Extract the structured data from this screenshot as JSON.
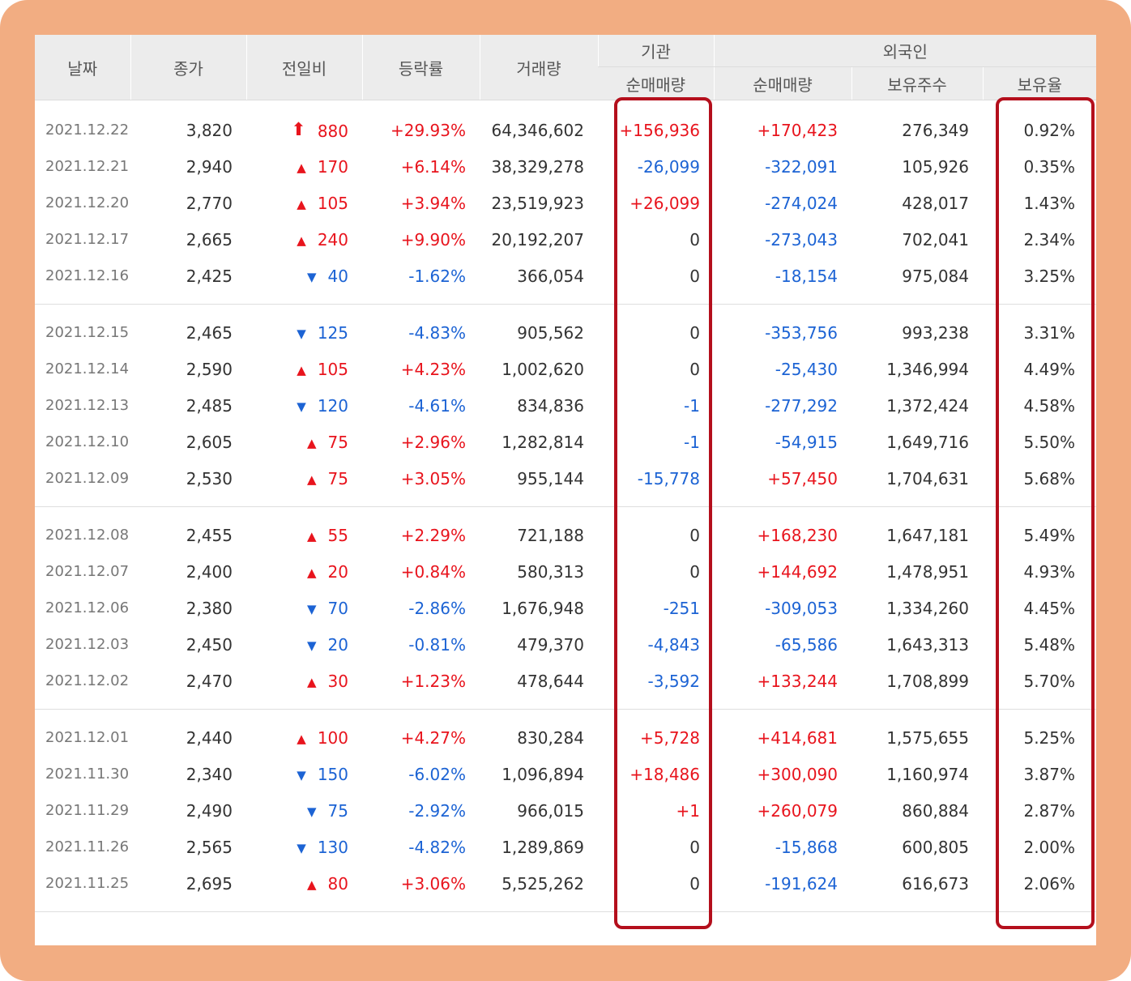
{
  "headers": {
    "date": "날짜",
    "close": "종가",
    "diff": "전일비",
    "rate": "등락률",
    "volume": "거래량",
    "institution": "기관",
    "foreign": "외국인",
    "inst_net": "순매매량",
    "frg_net": "순매매량",
    "holding": "보유주수",
    "ratio": "보유율"
  },
  "groups": [
    [
      {
        "date": "2021.12.22",
        "close": "3,820",
        "dir": "limit-up",
        "diff": "880",
        "rate": "+29.93%",
        "volume": "64,346,602",
        "inst": "+156,936",
        "inst_dir": "up",
        "frg": "+170,423",
        "frg_dir": "up",
        "holding": "276,349",
        "ratio": "0.92%"
      },
      {
        "date": "2021.12.21",
        "close": "2,940",
        "dir": "up",
        "diff": "170",
        "rate": "+6.14%",
        "volume": "38,329,278",
        "inst": "-26,099",
        "inst_dir": "down",
        "frg": "-322,091",
        "frg_dir": "down",
        "holding": "105,926",
        "ratio": "0.35%"
      },
      {
        "date": "2021.12.20",
        "close": "2,770",
        "dir": "up",
        "diff": "105",
        "rate": "+3.94%",
        "volume": "23,519,923",
        "inst": "+26,099",
        "inst_dir": "up",
        "frg": "-274,024",
        "frg_dir": "down",
        "holding": "428,017",
        "ratio": "1.43%"
      },
      {
        "date": "2021.12.17",
        "close": "2,665",
        "dir": "up",
        "diff": "240",
        "rate": "+9.90%",
        "volume": "20,192,207",
        "inst": "0",
        "inst_dir": "neutral",
        "frg": "-273,043",
        "frg_dir": "down",
        "holding": "702,041",
        "ratio": "2.34%"
      },
      {
        "date": "2021.12.16",
        "close": "2,425",
        "dir": "down",
        "diff": "40",
        "rate": "-1.62%",
        "volume": "366,054",
        "inst": "0",
        "inst_dir": "neutral",
        "frg": "-18,154",
        "frg_dir": "down",
        "holding": "975,084",
        "ratio": "3.25%"
      }
    ],
    [
      {
        "date": "2021.12.15",
        "close": "2,465",
        "dir": "down",
        "diff": "125",
        "rate": "-4.83%",
        "volume": "905,562",
        "inst": "0",
        "inst_dir": "neutral",
        "frg": "-353,756",
        "frg_dir": "down",
        "holding": "993,238",
        "ratio": "3.31%"
      },
      {
        "date": "2021.12.14",
        "close": "2,590",
        "dir": "up",
        "diff": "105",
        "rate": "+4.23%",
        "volume": "1,002,620",
        "inst": "0",
        "inst_dir": "neutral",
        "frg": "-25,430",
        "frg_dir": "down",
        "holding": "1,346,994",
        "ratio": "4.49%"
      },
      {
        "date": "2021.12.13",
        "close": "2,485",
        "dir": "down",
        "diff": "120",
        "rate": "-4.61%",
        "volume": "834,836",
        "inst": "-1",
        "inst_dir": "down",
        "frg": "-277,292",
        "frg_dir": "down",
        "holding": "1,372,424",
        "ratio": "4.58%"
      },
      {
        "date": "2021.12.10",
        "close": "2,605",
        "dir": "up",
        "diff": "75",
        "rate": "+2.96%",
        "volume": "1,282,814",
        "inst": "-1",
        "inst_dir": "down",
        "frg": "-54,915",
        "frg_dir": "down",
        "holding": "1,649,716",
        "ratio": "5.50%"
      },
      {
        "date": "2021.12.09",
        "close": "2,530",
        "dir": "up",
        "diff": "75",
        "rate": "+3.05%",
        "volume": "955,144",
        "inst": "-15,778",
        "inst_dir": "down",
        "frg": "+57,450",
        "frg_dir": "up",
        "holding": "1,704,631",
        "ratio": "5.68%"
      }
    ],
    [
      {
        "date": "2021.12.08",
        "close": "2,455",
        "dir": "up",
        "diff": "55",
        "rate": "+2.29%",
        "volume": "721,188",
        "inst": "0",
        "inst_dir": "neutral",
        "frg": "+168,230",
        "frg_dir": "up",
        "holding": "1,647,181",
        "ratio": "5.49%"
      },
      {
        "date": "2021.12.07",
        "close": "2,400",
        "dir": "up",
        "diff": "20",
        "rate": "+0.84%",
        "volume": "580,313",
        "inst": "0",
        "inst_dir": "neutral",
        "frg": "+144,692",
        "frg_dir": "up",
        "holding": "1,478,951",
        "ratio": "4.93%"
      },
      {
        "date": "2021.12.06",
        "close": "2,380",
        "dir": "down",
        "diff": "70",
        "rate": "-2.86%",
        "volume": "1,676,948",
        "inst": "-251",
        "inst_dir": "down",
        "frg": "-309,053",
        "frg_dir": "down",
        "holding": "1,334,260",
        "ratio": "4.45%"
      },
      {
        "date": "2021.12.03",
        "close": "2,450",
        "dir": "down",
        "diff": "20",
        "rate": "-0.81%",
        "volume": "479,370",
        "inst": "-4,843",
        "inst_dir": "down",
        "frg": "-65,586",
        "frg_dir": "down",
        "holding": "1,643,313",
        "ratio": "5.48%"
      },
      {
        "date": "2021.12.02",
        "close": "2,470",
        "dir": "up",
        "diff": "30",
        "rate": "+1.23%",
        "volume": "478,644",
        "inst": "-3,592",
        "inst_dir": "down",
        "frg": "+133,244",
        "frg_dir": "up",
        "holding": "1,708,899",
        "ratio": "5.70%"
      }
    ],
    [
      {
        "date": "2021.12.01",
        "close": "2,440",
        "dir": "up",
        "diff": "100",
        "rate": "+4.27%",
        "volume": "830,284",
        "inst": "+5,728",
        "inst_dir": "up",
        "frg": "+414,681",
        "frg_dir": "up",
        "holding": "1,575,655",
        "ratio": "5.25%"
      },
      {
        "date": "2021.11.30",
        "close": "2,340",
        "dir": "down",
        "diff": "150",
        "rate": "-6.02%",
        "volume": "1,096,894",
        "inst": "+18,486",
        "inst_dir": "up",
        "frg": "+300,090",
        "frg_dir": "up",
        "holding": "1,160,974",
        "ratio": "3.87%"
      },
      {
        "date": "2021.11.29",
        "close": "2,490",
        "dir": "down",
        "diff": "75",
        "rate": "-2.92%",
        "volume": "966,015",
        "inst": "+1",
        "inst_dir": "up",
        "frg": "+260,079",
        "frg_dir": "up",
        "holding": "860,884",
        "ratio": "2.87%"
      },
      {
        "date": "2021.11.26",
        "close": "2,565",
        "dir": "down",
        "diff": "130",
        "rate": "-4.82%",
        "volume": "1,289,869",
        "inst": "0",
        "inst_dir": "neutral",
        "frg": "-15,868",
        "frg_dir": "down",
        "holding": "600,805",
        "ratio": "2.00%"
      },
      {
        "date": "2021.11.25",
        "close": "2,695",
        "dir": "up",
        "diff": "80",
        "rate": "+3.06%",
        "volume": "5,525,262",
        "inst": "0",
        "inst_dir": "neutral",
        "frg": "-191,624",
        "frg_dir": "down",
        "holding": "616,673",
        "ratio": "2.06%"
      }
    ]
  ],
  "colors": {
    "up": "#e8141d",
    "down": "#1c63d4",
    "highlight": "#b40f1c",
    "frame": "#f2ad82"
  }
}
